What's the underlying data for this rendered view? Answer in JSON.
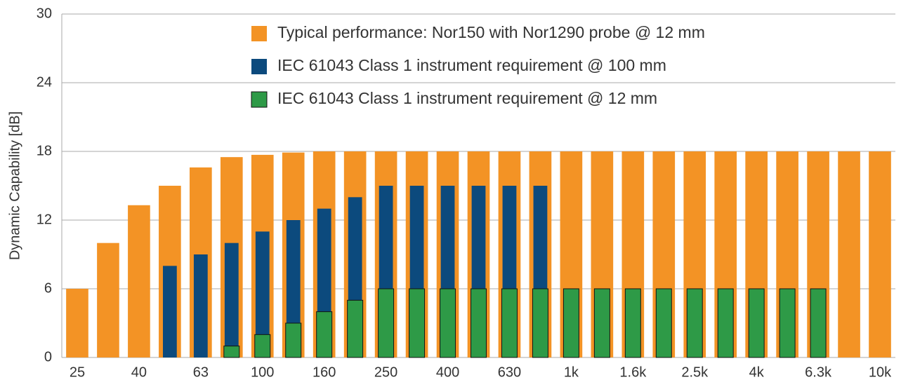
{
  "chart_data": {
    "type": "bar",
    "ylabel": "Dynamic Capability [dB]",
    "categories": [
      "25",
      null,
      "40",
      null,
      "63",
      null,
      "100",
      null,
      "160",
      null,
      "250",
      null,
      "400",
      null,
      "630",
      null,
      "1k",
      null,
      "1.6k",
      null,
      "2.5k",
      null,
      "4k",
      null,
      "6.3k",
      null,
      "10k"
    ],
    "series": [
      {
        "name": "Typical performance: Nor150 with Nor1290 probe @ 12 mm",
        "color": "#f39325",
        "values": [
          6,
          10,
          13.3,
          15,
          16.6,
          17.5,
          17.7,
          17.9,
          18,
          18,
          18,
          18,
          18,
          18,
          18,
          18,
          18,
          18,
          18,
          18,
          18,
          18,
          18,
          18,
          18,
          18,
          18
        ]
      },
      {
        "name": "IEC 61043 Class 1 instrument requirement @ 100 mm",
        "color": "#0c4a7d",
        "values": [
          null,
          null,
          null,
          8,
          9,
          10,
          11,
          12,
          13,
          14,
          15,
          15,
          15,
          15,
          15,
          15,
          null,
          null,
          null,
          null,
          null,
          null,
          null,
          null,
          null,
          null,
          null
        ]
      },
      {
        "name": "IEC 61043 Class 1 instrument requirement @ 12 mm",
        "color": "#2e9a47",
        "values": [
          null,
          null,
          null,
          null,
          null,
          1,
          2,
          3,
          4,
          5,
          6,
          6,
          6,
          6,
          6,
          6,
          6,
          6,
          6,
          6,
          6,
          6,
          6,
          6,
          6,
          null,
          null
        ]
      }
    ],
    "ylim": [
      0,
      30
    ],
    "yticks": [
      0,
      6,
      12,
      18,
      24,
      30
    ],
    "grid": true
  }
}
